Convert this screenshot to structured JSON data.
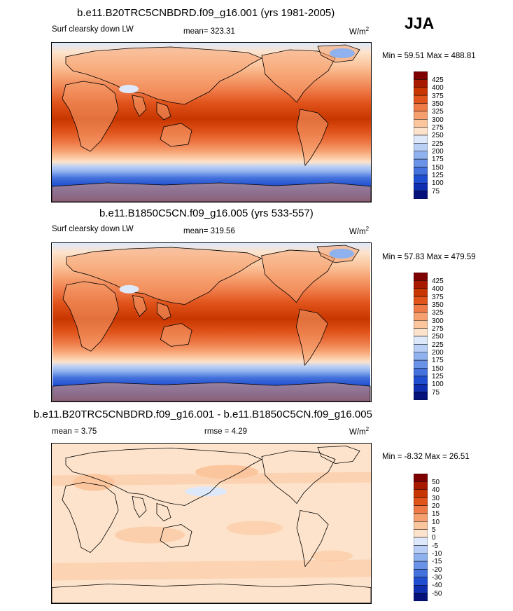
{
  "season": "JJA",
  "panels": [
    {
      "title": "b.e11.B20TRC5CNBDRD.f09_g16.001 (yrs 1981-2005)",
      "left_label": "Surf clearsky down LW",
      "mean_text": "mean= 323.31",
      "units": "W/m",
      "units_sup": "2",
      "minmax": "Min =  59.51 Max = 488.81",
      "levels": [
        "425",
        "400",
        "375",
        "350",
        "325",
        "300",
        "275",
        "250",
        "225",
        "200",
        "175",
        "150",
        "125",
        "100",
        "75"
      ]
    },
    {
      "title": "b.e11.B1850C5CN.f09_g16.005 (yrs 533-557)",
      "left_label": "Surf clearsky down LW",
      "mean_text": "mean= 319.56",
      "units": "W/m",
      "units_sup": "2",
      "minmax": "Min =  57.83 Max = 479.59",
      "levels": [
        "425",
        "400",
        "375",
        "350",
        "325",
        "300",
        "275",
        "250",
        "225",
        "200",
        "175",
        "150",
        "125",
        "100",
        "75"
      ]
    },
    {
      "title": "b.e11.B20TRC5CNBDRD.f09_g16.001 - b.e11.B1850C5CN.f09_g16.005",
      "left_label": "mean =   3.75",
      "mean_text": "rmse =   4.29",
      "units": "W/m",
      "units_sup": "2",
      "minmax": "Min =  -8.32 Max =  26.51",
      "levels": [
        "50",
        "40",
        "30",
        "20",
        "15",
        "10",
        "5",
        "0",
        "-5",
        "-10",
        "-15",
        "-20",
        "-30",
        "-40",
        "-50"
      ]
    }
  ],
  "colors": {
    "abs_scale": [
      "#7f0000",
      "#a81a00",
      "#c83600",
      "#e0531a",
      "#ee7a48",
      "#f6a070",
      "#fbc69e",
      "#fde3cb",
      "#dde9fa",
      "#b9cff6",
      "#8fb1ee",
      "#6a92e6",
      "#4471dc",
      "#1f4fd0",
      "#0f2fb0",
      "#06127a"
    ],
    "diff_scale": [
      "#7f0000",
      "#a81a00",
      "#c83600",
      "#e0531a",
      "#ee7a48",
      "#f6a070",
      "#fbc69e",
      "#fde3cb",
      "#dde9fa",
      "#b9cff6",
      "#8fb1ee",
      "#6a92e6",
      "#4471dc",
      "#1f4fd0",
      "#0f2fb0",
      "#06127a"
    ]
  }
}
